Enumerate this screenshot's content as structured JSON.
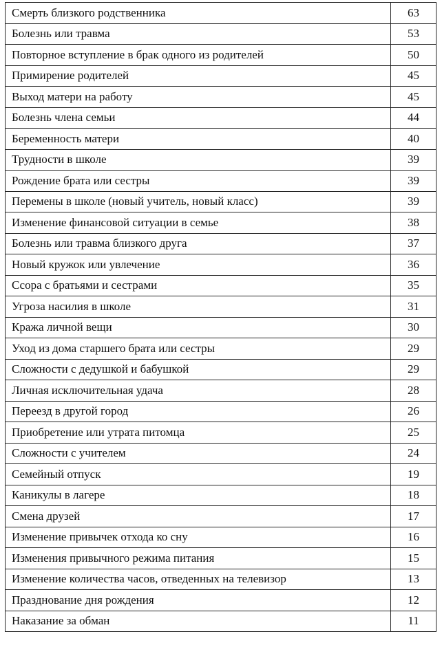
{
  "table": {
    "rows": [
      [
        "Смерть близкого родственника",
        63
      ],
      [
        "Болезнь или травма",
        53
      ],
      [
        "Повторное вступление в брак одного из родителей",
        50
      ],
      [
        "Примирение родителей",
        45
      ],
      [
        "Выход матери на работу",
        45
      ],
      [
        "Болезнь члена семьи",
        44
      ],
      [
        "Беременность матери",
        40
      ],
      [
        "Трудности в школе",
        39
      ],
      [
        "Рождение брата или сестры",
        39
      ],
      [
        "Перемены в школе (новый учитель, новый класс)",
        39
      ],
      [
        "Изменение финансовой ситуации в семье",
        38
      ],
      [
        "Болезнь или травма близкого друга",
        37
      ],
      [
        "Новый кружок или увлечение",
        36
      ],
      [
        "Ссора с братьями и сестрами",
        35
      ],
      [
        "Угроза насилия в школе",
        31
      ],
      [
        "Кража личной вещи",
        30
      ],
      [
        "Уход из дома старшего брата или сестры",
        29
      ],
      [
        "Сложности с дедушкой и бабушкой",
        29
      ],
      [
        "Личная исключительная удача",
        28
      ],
      [
        "Переезд в другой город",
        26
      ],
      [
        "Приобретение или утрата питомца",
        25
      ],
      [
        "Сложности с учителем",
        24
      ],
      [
        "Семейный отпуск",
        19
      ],
      [
        "Каникулы в лагере",
        18
      ],
      [
        "Смена друзей",
        17
      ],
      [
        "Изменение привычек отхода ко сну",
        16
      ],
      [
        "Изменения привычного режима питания",
        15
      ],
      [
        "Изменение количества часов, отведенных на телевизор",
        13
      ],
      [
        "Празднование дня рождения",
        12
      ],
      [
        "Наказание за обман",
        11
      ]
    ]
  }
}
